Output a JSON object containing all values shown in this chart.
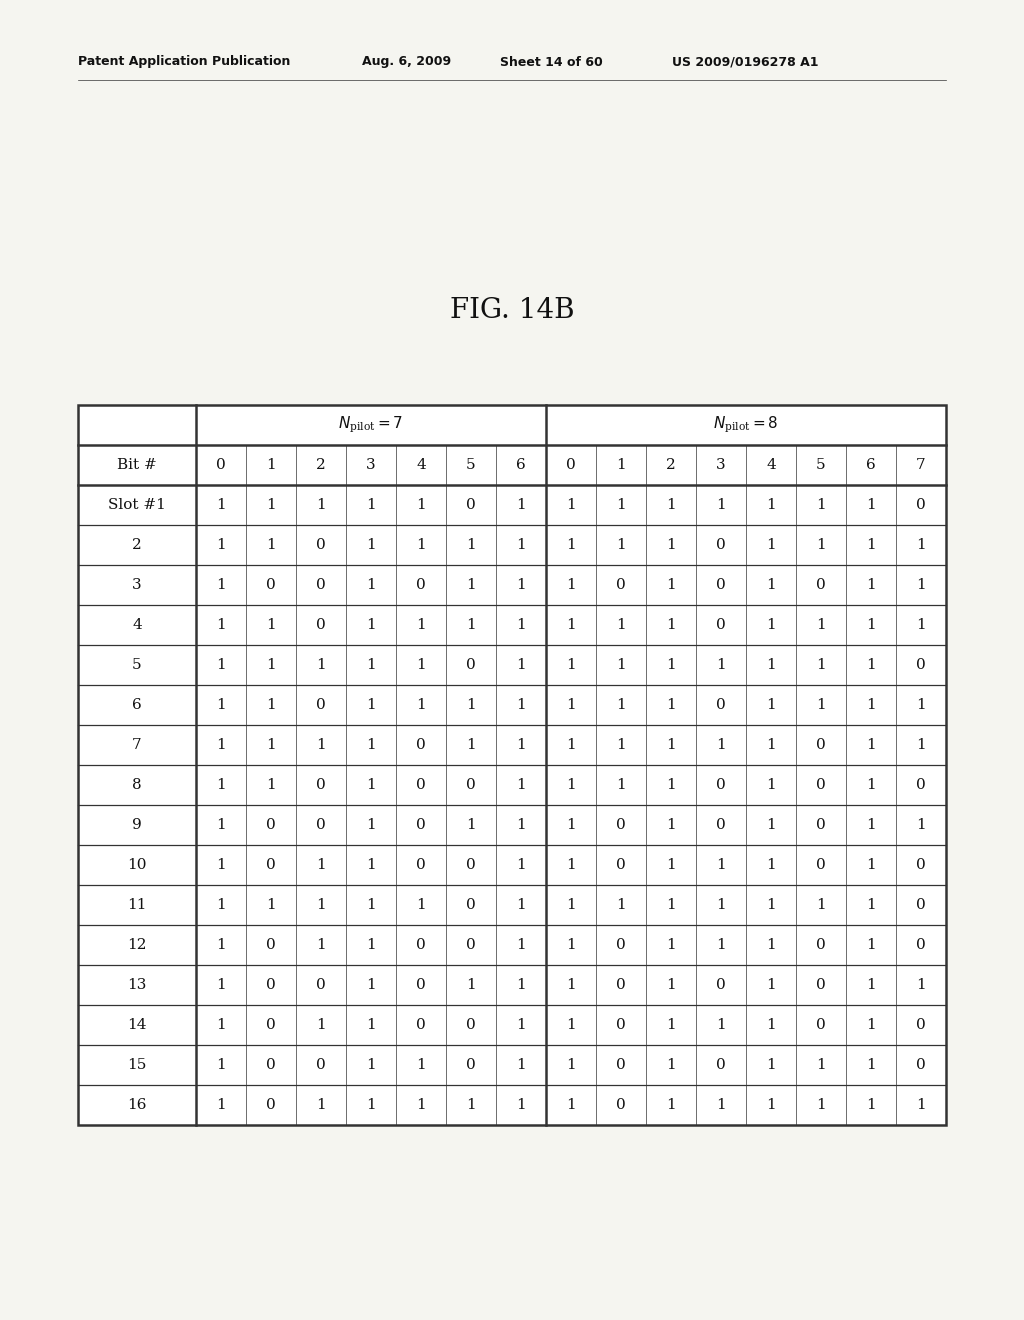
{
  "header_text": "Patent Application Publication",
  "header_date": "Aug. 6, 2009",
  "header_sheet": "Sheet 14 of 60",
  "header_patent": "US 2009/0196278 A1",
  "fig_label": "FIG. 14B",
  "bit7": [
    "0",
    "1",
    "2",
    "3",
    "4",
    "5",
    "6"
  ],
  "bit8": [
    "0",
    "1",
    "2",
    "3",
    "4",
    "5",
    "6",
    "7"
  ],
  "slots": [
    "Slot #1",
    "2",
    "3",
    "4",
    "5",
    "6",
    "7",
    "8",
    "9",
    "10",
    "11",
    "12",
    "13",
    "14",
    "15",
    "16"
  ],
  "data7": [
    [
      1,
      1,
      1,
      1,
      1,
      0,
      1
    ],
    [
      1,
      1,
      0,
      1,
      1,
      1,
      1
    ],
    [
      1,
      0,
      0,
      1,
      0,
      1,
      1
    ],
    [
      1,
      1,
      0,
      1,
      1,
      1,
      1
    ],
    [
      1,
      1,
      1,
      1,
      1,
      0,
      1
    ],
    [
      1,
      1,
      0,
      1,
      1,
      1,
      1
    ],
    [
      1,
      1,
      1,
      1,
      0,
      1,
      1
    ],
    [
      1,
      1,
      0,
      1,
      0,
      0,
      1
    ],
    [
      1,
      0,
      0,
      1,
      0,
      1,
      1
    ],
    [
      1,
      0,
      1,
      1,
      0,
      0,
      1
    ],
    [
      1,
      1,
      1,
      1,
      1,
      0,
      1
    ],
    [
      1,
      0,
      1,
      1,
      0,
      0,
      1
    ],
    [
      1,
      0,
      0,
      1,
      0,
      1,
      1
    ],
    [
      1,
      0,
      1,
      1,
      0,
      0,
      1
    ],
    [
      1,
      0,
      0,
      1,
      1,
      0,
      1
    ],
    [
      1,
      0,
      1,
      1,
      1,
      1,
      1
    ]
  ],
  "data8": [
    [
      1,
      1,
      1,
      1,
      1,
      1,
      1,
      0
    ],
    [
      1,
      1,
      1,
      0,
      1,
      1,
      1,
      1
    ],
    [
      1,
      0,
      1,
      0,
      1,
      0,
      1,
      1
    ],
    [
      1,
      1,
      1,
      0,
      1,
      1,
      1,
      1
    ],
    [
      1,
      1,
      1,
      1,
      1,
      1,
      1,
      0
    ],
    [
      1,
      1,
      1,
      0,
      1,
      1,
      1,
      1
    ],
    [
      1,
      1,
      1,
      1,
      1,
      0,
      1,
      1
    ],
    [
      1,
      1,
      1,
      0,
      1,
      0,
      1,
      0
    ],
    [
      1,
      0,
      1,
      0,
      1,
      0,
      1,
      1
    ],
    [
      1,
      0,
      1,
      1,
      1,
      0,
      1,
      0
    ],
    [
      1,
      1,
      1,
      1,
      1,
      1,
      1,
      0
    ],
    [
      1,
      0,
      1,
      1,
      1,
      0,
      1,
      0
    ],
    [
      1,
      0,
      1,
      0,
      1,
      0,
      1,
      1
    ],
    [
      1,
      0,
      1,
      1,
      1,
      0,
      1,
      0
    ],
    [
      1,
      0,
      1,
      0,
      1,
      1,
      1,
      0
    ],
    [
      1,
      0,
      1,
      1,
      1,
      1,
      1,
      1
    ]
  ],
  "bg_color": "#f5f5f0",
  "table_bg": "#ffffff",
  "line_color": "#333333",
  "text_color": "#111111"
}
